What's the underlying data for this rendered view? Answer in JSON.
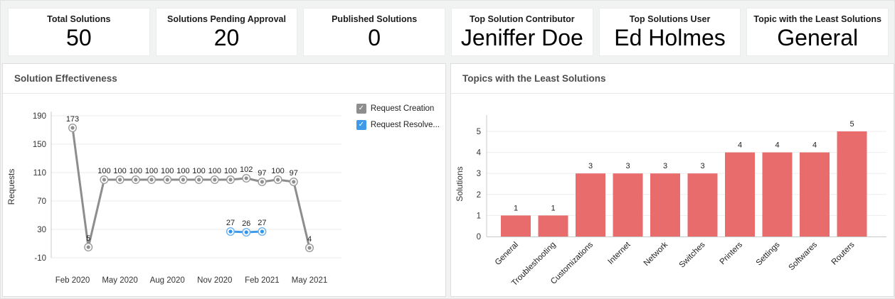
{
  "icons": {
    "check": "✓"
  },
  "kpi_cards": [
    {
      "label": "Total Solutions",
      "value": "50"
    },
    {
      "label": "Solutions Pending Approval",
      "value": "20"
    },
    {
      "label": "Published Solutions",
      "value": "0"
    },
    {
      "label": "Top Solution Contributor",
      "value": "Jeniffer Doe"
    },
    {
      "label": "Top Solutions User",
      "value": "Ed Holmes"
    },
    {
      "label": "Topic with the Least Solutions",
      "value": "General"
    }
  ],
  "panels": {
    "solution_effectiveness": {
      "title": "Solution Effectiveness"
    },
    "least_solutions": {
      "title": "Topics with the Least Solutions"
    }
  },
  "chart_data": [
    {
      "type": "line",
      "title": "Solution Effectiveness",
      "xlabel": "",
      "ylabel": "Requests",
      "ylim": [
        -10,
        190
      ],
      "yticks": [
        190,
        150,
        110,
        70,
        30,
        -10
      ],
      "x_point_count": 16,
      "xticks": [
        {
          "index": 0,
          "label": "Feb 2020"
        },
        {
          "index": 3,
          "label": "May 2020"
        },
        {
          "index": 6,
          "label": "Aug 2020"
        },
        {
          "index": 9,
          "label": "Nov 2020"
        },
        {
          "index": 12,
          "label": "Feb 2021"
        },
        {
          "index": 15,
          "label": "May 2021"
        }
      ],
      "grid": true,
      "legend_position": "right",
      "series": [
        {
          "name": "Request Creation",
          "legend_label": "Request Creation",
          "color": "#8d8d8d",
          "marker_ring": "#9a9a9a",
          "marker_dot": "#8f8f8f",
          "legend_checked": true,
          "start_index": 0,
          "values": [
            173,
            5,
            100,
            100,
            100,
            100,
            100,
            100,
            100,
            100,
            100,
            102,
            97,
            100,
            97,
            4
          ]
        },
        {
          "name": "Request Resolved",
          "legend_label": "Request Resolve...",
          "color": "#3d9be9",
          "marker_ring": "#6ab1f0",
          "marker_dot": "#2f94ec",
          "legend_checked": true,
          "start_index": 10,
          "values": [
            27,
            26,
            27
          ]
        }
      ]
    },
    {
      "type": "bar",
      "title": "Topics with the Least Solutions",
      "xlabel": "",
      "ylabel": "Solutions",
      "ylim": [
        0,
        5
      ],
      "yticks": [
        0,
        1,
        2,
        3,
        4,
        5
      ],
      "grid": true,
      "bar_color": "#e86c6c",
      "categories": [
        "General",
        "Troubleshooting",
        "Customizations",
        "Internet",
        "Network",
        "Switches",
        "Printers",
        "Settings",
        "Softwares",
        "Routers"
      ],
      "values": [
        1,
        1,
        3,
        3,
        3,
        3,
        4,
        4,
        4,
        5
      ]
    }
  ]
}
